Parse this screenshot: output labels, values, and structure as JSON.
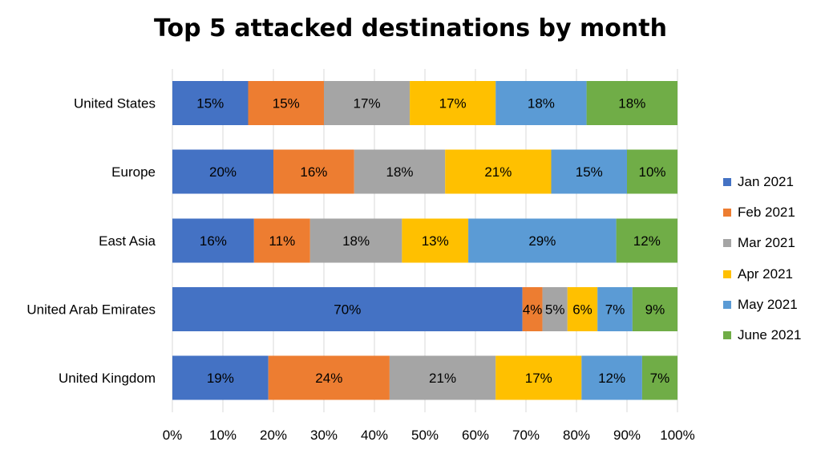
{
  "chart_data": {
    "type": "bar",
    "orientation": "horizontal",
    "stacked": "percent",
    "title": "Top 5 attacked destinations by month",
    "categories": [
      "United States",
      "Europe",
      "East Asia",
      "United Arab Emirates",
      "United Kingdom"
    ],
    "series": [
      {
        "name": "Jan 2021",
        "color": "#4472C4",
        "values": [
          15,
          20,
          16,
          70,
          19
        ]
      },
      {
        "name": "Feb 2021",
        "color": "#ED7D31",
        "values": [
          15,
          16,
          11,
          4,
          24
        ]
      },
      {
        "name": "Mar 2021",
        "color": "#A5A5A5",
        "values": [
          17,
          18,
          18,
          5,
          21
        ]
      },
      {
        "name": "Apr 2021",
        "color": "#FFC000",
        "values": [
          17,
          21,
          13,
          6,
          17
        ]
      },
      {
        "name": "May 2021",
        "color": "#5B9BD5",
        "values": [
          18,
          15,
          29,
          7,
          12
        ]
      },
      {
        "name": "June 2021",
        "color": "#70AD47",
        "values": [
          18,
          10,
          12,
          9,
          7
        ]
      }
    ],
    "data_labels": [
      [
        "15%",
        "15%",
        "17%",
        "17%",
        "18%",
        "18%"
      ],
      [
        "20%",
        "16%",
        "18%",
        "21%",
        "15%",
        "10%"
      ],
      [
        "16%",
        "11%",
        "18%",
        "13%",
        "29%",
        "12%"
      ],
      [
        "70%",
        "4%",
        "5%",
        "6%",
        "7%",
        "9%"
      ],
      [
        "19%",
        "24%",
        "21%",
        "17%",
        "12%",
        "7%"
      ]
    ],
    "x_ticks": [
      "0%",
      "10%",
      "20%",
      "30%",
      "40%",
      "50%",
      "60%",
      "70%",
      "80%",
      "90%",
      "100%"
    ],
    "xlim": [
      0,
      100
    ],
    "grid": "vertical",
    "legend": "right"
  }
}
